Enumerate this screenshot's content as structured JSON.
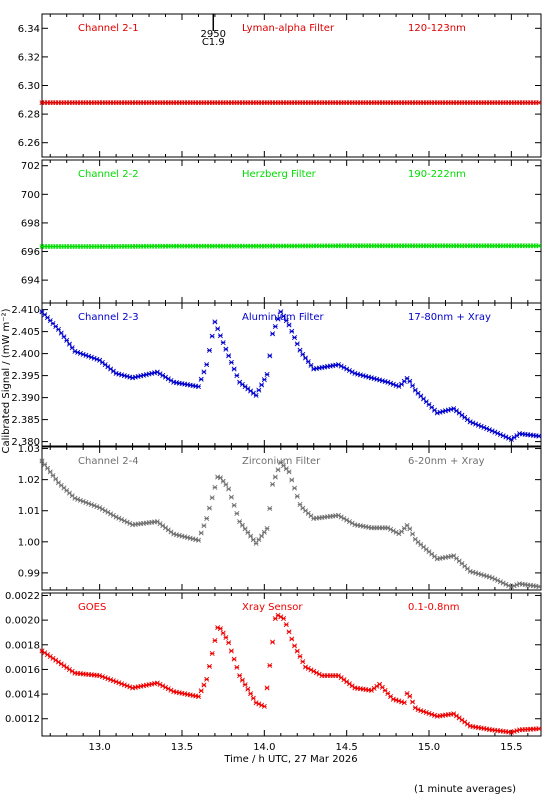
{
  "chart_data": {
    "type": "scatter",
    "xlabel": "Time / h UTC, 27 Mar 2026",
    "ylabel": "Calibrated Signal / (mW m⁻²)",
    "footnote": "(1 minute averages)",
    "xlim": [
      12.65,
      15.68
    ],
    "x_ticks": [
      13.0,
      13.5,
      14.0,
      14.5,
      15.0,
      15.5
    ],
    "x_tick_labels": [
      "13.0",
      "13.5",
      "14.0",
      "14.5",
      "15.0",
      "15.5"
    ],
    "event_marker": {
      "x": 13.69,
      "labels": [
        "2950",
        "C1.9"
      ]
    },
    "panels": [
      {
        "channel": "Channel 2-1",
        "filter": "Lyman-alpha Filter",
        "band": "120-123nm",
        "color": "#dd0000",
        "ylim": [
          6.25,
          6.35
        ],
        "y_ticks": [
          "6.26",
          "6.28",
          "6.30",
          "6.32",
          "6.34"
        ],
        "points": [
          [
            12.65,
            6.288
          ],
          [
            13.0,
            6.288
          ],
          [
            13.5,
            6.288
          ],
          [
            14.0,
            6.288
          ],
          [
            14.5,
            6.288
          ],
          [
            15.0,
            6.288
          ],
          [
            15.68,
            6.288
          ]
        ]
      },
      {
        "channel": "Channel 2-2",
        "filter": "Herzberg Filter",
        "band": "190-222nm",
        "color": "#00dd00",
        "ylim": [
          692.4,
          702.4
        ],
        "y_ticks": [
          "694",
          "696",
          "698",
          "700",
          "702"
        ],
        "points": [
          [
            12.65,
            696.35
          ],
          [
            13.0,
            696.35
          ],
          [
            13.5,
            696.38
          ],
          [
            14.0,
            696.38
          ],
          [
            14.5,
            696.4
          ],
          [
            15.0,
            696.4
          ],
          [
            15.68,
            696.4
          ]
        ]
      },
      {
        "channel": "Channel 2-3",
        "filter": "Aluminium Filter",
        "band": "17-80nm + Xray",
        "color": "#0000cc",
        "ylim": [
          2.379,
          2.4115
        ],
        "y_ticks": [
          "2.380",
          "2.385",
          "2.390",
          "2.395",
          "2.400",
          "2.405",
          "2.410"
        ],
        "points": [
          [
            12.65,
            2.4095
          ],
          [
            12.75,
            2.4055
          ],
          [
            12.85,
            2.4005
          ],
          [
            13.0,
            2.3985
          ],
          [
            13.1,
            2.3955
          ],
          [
            13.2,
            2.3945
          ],
          [
            13.35,
            2.3958
          ],
          [
            13.45,
            2.3935
          ],
          [
            13.6,
            2.3925
          ],
          [
            13.65,
            2.3975
          ],
          [
            13.7,
            2.4072
          ],
          [
            13.75,
            2.4025
          ],
          [
            13.85,
            2.3935
          ],
          [
            13.95,
            2.3905
          ],
          [
            14.02,
            2.3955
          ],
          [
            14.05,
            2.4045
          ],
          [
            14.1,
            2.4095
          ],
          [
            14.15,
            2.4065
          ],
          [
            14.22,
            2.4005
          ],
          [
            14.3,
            2.3965
          ],
          [
            14.45,
            2.3975
          ],
          [
            14.55,
            2.3955
          ],
          [
            14.65,
            2.3945
          ],
          [
            14.75,
            2.3935
          ],
          [
            14.82,
            2.3925
          ],
          [
            14.87,
            2.3945
          ],
          [
            14.92,
            2.3915
          ],
          [
            15.05,
            2.3865
          ],
          [
            15.15,
            2.3875
          ],
          [
            15.25,
            2.3845
          ],
          [
            15.38,
            2.3825
          ],
          [
            15.5,
            2.3805
          ],
          [
            15.55,
            2.3818
          ],
          [
            15.68,
            2.3812
          ]
        ]
      },
      {
        "channel": "Channel 2-4",
        "filter": "Zirconium Filter",
        "band": "6-20nm + Xray",
        "color": "#707070",
        "ylim": [
          0.9845,
          1.0305
        ],
        "y_ticks": [
          "0.99",
          "1.00",
          "1.01",
          "1.02",
          "1.03"
        ],
        "points": [
          [
            12.65,
            1.026
          ],
          [
            12.75,
            1.019
          ],
          [
            12.85,
            1.014
          ],
          [
            13.0,
            1.011
          ],
          [
            13.1,
            1.008
          ],
          [
            13.2,
            1.0055
          ],
          [
            13.35,
            1.0065
          ],
          [
            13.45,
            1.0025
          ],
          [
            13.6,
            1.0005
          ],
          [
            13.65,
            1.0075
          ],
          [
            13.72,
            1.0215
          ],
          [
            13.78,
            1.0175
          ],
          [
            13.85,
            1.0065
          ],
          [
            13.95,
            0.9995
          ],
          [
            14.02,
            1.0045
          ],
          [
            14.05,
            1.0185
          ],
          [
            14.1,
            1.0255
          ],
          [
            14.15,
            1.0225
          ],
          [
            14.22,
            1.0115
          ],
          [
            14.3,
            1.0075
          ],
          [
            14.45,
            1.0085
          ],
          [
            14.55,
            1.0055
          ],
          [
            14.65,
            1.0045
          ],
          [
            14.75,
            1.0045
          ],
          [
            14.82,
            1.0025
          ],
          [
            14.87,
            1.0055
          ],
          [
            14.92,
            1.0005
          ],
          [
            15.05,
            0.9945
          ],
          [
            15.15,
            0.9955
          ],
          [
            15.25,
            0.9905
          ],
          [
            15.38,
            0.9885
          ],
          [
            15.5,
            0.9855
          ],
          [
            15.55,
            0.9865
          ],
          [
            15.68,
            0.9855
          ]
        ]
      },
      {
        "channel": "GOES",
        "filter": "Xray Sensor",
        "band": "0.1-0.8nm",
        "color": "#ee0000",
        "ylim": [
          0.00106,
          0.00222
        ],
        "y_ticks": [
          "0.0012",
          "0.0014",
          "0.0016",
          "0.0018",
          "0.0020",
          "0.0022"
        ],
        "points": [
          [
            12.65,
            0.00175
          ],
          [
            12.75,
            0.00166
          ],
          [
            12.85,
            0.00157
          ],
          [
            13.0,
            0.00155
          ],
          [
            13.1,
            0.0015
          ],
          [
            13.2,
            0.00145
          ],
          [
            13.35,
            0.00149
          ],
          [
            13.45,
            0.00142
          ],
          [
            13.6,
            0.00138
          ],
          [
            13.65,
            0.00152
          ],
          [
            13.72,
            0.00196
          ],
          [
            13.78,
            0.00183
          ],
          [
            13.85,
            0.00155
          ],
          [
            13.95,
            0.00133
          ],
          [
            14.0,
            0.0013
          ],
          [
            14.02,
            0.00148
          ],
          [
            14.07,
            0.00205
          ],
          [
            14.12,
            0.00201
          ],
          [
            14.18,
            0.0018
          ],
          [
            14.25,
            0.00162
          ],
          [
            14.35,
            0.00155
          ],
          [
            14.45,
            0.00155
          ],
          [
            14.55,
            0.00145
          ],
          [
            14.65,
            0.00143
          ],
          [
            14.7,
            0.00148
          ],
          [
            14.78,
            0.00136
          ],
          [
            14.85,
            0.00133
          ],
          [
            14.87,
            0.00142
          ],
          [
            14.92,
            0.00128
          ],
          [
            15.05,
            0.00122
          ],
          [
            15.15,
            0.00124
          ],
          [
            15.25,
            0.00114
          ],
          [
            15.38,
            0.00111
          ],
          [
            15.5,
            0.00109
          ],
          [
            15.55,
            0.00111
          ],
          [
            15.68,
            0.00112
          ]
        ]
      }
    ]
  }
}
